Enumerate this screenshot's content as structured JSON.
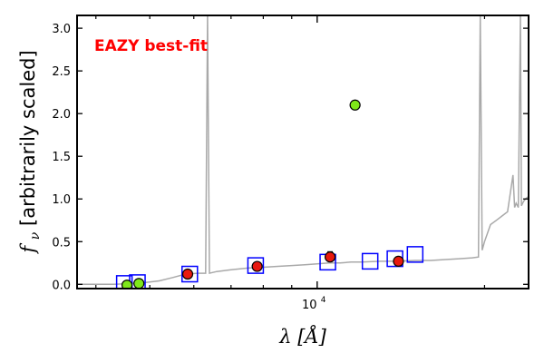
{
  "chart_data": {
    "type": "scatter",
    "xscale": "log",
    "xlim": [
      3700,
      24000
    ],
    "ylim": [
      -0.05,
      3.15
    ],
    "ylabel": "f_ν [arbitrarily scaled]",
    "ylabel_symbol": "f",
    "ylabel_subscript": "ν",
    "ylabel_text": " [arbitrarily scaled]",
    "xlabel": "λ [Å]",
    "xlabel_symbol": "λ",
    "xlabel_unit": " [Å]",
    "x_tick_label_base": "10",
    "x_tick_label_exp": "4",
    "y_ticks": [
      "0.0",
      "0.5",
      "1.0",
      "1.5",
      "2.0",
      "2.5",
      "3.0"
    ],
    "annotation": "EAZY best-fit",
    "colors": {
      "annotation": "#ff0000",
      "model_line": "#a9a9a9",
      "model_boxes": "#0000ff",
      "detections": "#e8190f",
      "nondetections": "#7fe81a"
    },
    "model_curve": [
      [
        3700,
        0.0
      ],
      [
        4000,
        0.0
      ],
      [
        4300,
        0.0
      ],
      [
        4600,
        0.01
      ],
      [
        4900,
        0.02
      ],
      [
        5200,
        0.04
      ],
      [
        5500,
        0.08
      ],
      [
        5800,
        0.12
      ],
      [
        6100,
        0.13
      ],
      [
        6300,
        0.13
      ],
      [
        6350,
        3.15
      ],
      [
        6400,
        0.13
      ],
      [
        6600,
        0.15
      ],
      [
        7000,
        0.17
      ],
      [
        7500,
        0.19
      ],
      [
        8000,
        0.2
      ],
      [
        8500,
        0.21
      ],
      [
        9000,
        0.22
      ],
      [
        9500,
        0.23
      ],
      [
        10000,
        0.24
      ],
      [
        10500,
        0.25
      ],
      [
        11000,
        0.25
      ],
      [
        11500,
        0.26
      ],
      [
        12000,
        0.26
      ],
      [
        13000,
        0.27
      ],
      [
        14000,
        0.27
      ],
      [
        15000,
        0.28
      ],
      [
        16000,
        0.28
      ],
      [
        17000,
        0.29
      ],
      [
        18000,
        0.3
      ],
      [
        19000,
        0.31
      ],
      [
        19500,
        0.32
      ],
      [
        19650,
        3.15
      ],
      [
        19800,
        0.4
      ],
      [
        20000,
        0.5
      ],
      [
        20500,
        0.7
      ],
      [
        21000,
        0.75
      ],
      [
        21500,
        0.8
      ],
      [
        22000,
        0.85
      ],
      [
        22500,
        1.28
      ],
      [
        22650,
        0.9
      ],
      [
        22800,
        0.95
      ],
      [
        23000,
        0.9
      ],
      [
        23200,
        3.15
      ],
      [
        23300,
        0.92
      ],
      [
        23500,
        0.97
      ],
      [
        23700,
        1.0
      ],
      [
        24000,
        1.03
      ]
    ],
    "series": [
      {
        "name": "",
        "marker": "square",
        "points": [
          {
            "x": 4500,
            "y": 0.01
          },
          {
            "x": 4750,
            "y": 0.02
          },
          {
            "x": 5900,
            "y": 0.12
          },
          {
            "x": 7750,
            "y": 0.22
          },
          {
            "x": 10450,
            "y": 0.26
          },
          {
            "x": 12450,
            "y": 0.27
          },
          {
            "x": 13800,
            "y": 0.3
          },
          {
            "x": 15000,
            "y": 0.35
          }
        ]
      },
      {
        "name": "",
        "marker": "circle",
        "points": [
          {
            "x": 5850,
            "y": 0.12
          },
          {
            "x": 7800,
            "y": 0.21
          },
          {
            "x": 10550,
            "y": 0.32,
            "err": 0.06
          },
          {
            "x": 14000,
            "y": 0.27,
            "err": 0.05
          }
        ]
      },
      {
        "name": "",
        "marker": "circle",
        "points": [
          {
            "x": 4550,
            "y": -0.01
          },
          {
            "x": 4780,
            "y": 0.01
          },
          {
            "x": 11700,
            "y": 2.1
          }
        ]
      }
    ]
  }
}
